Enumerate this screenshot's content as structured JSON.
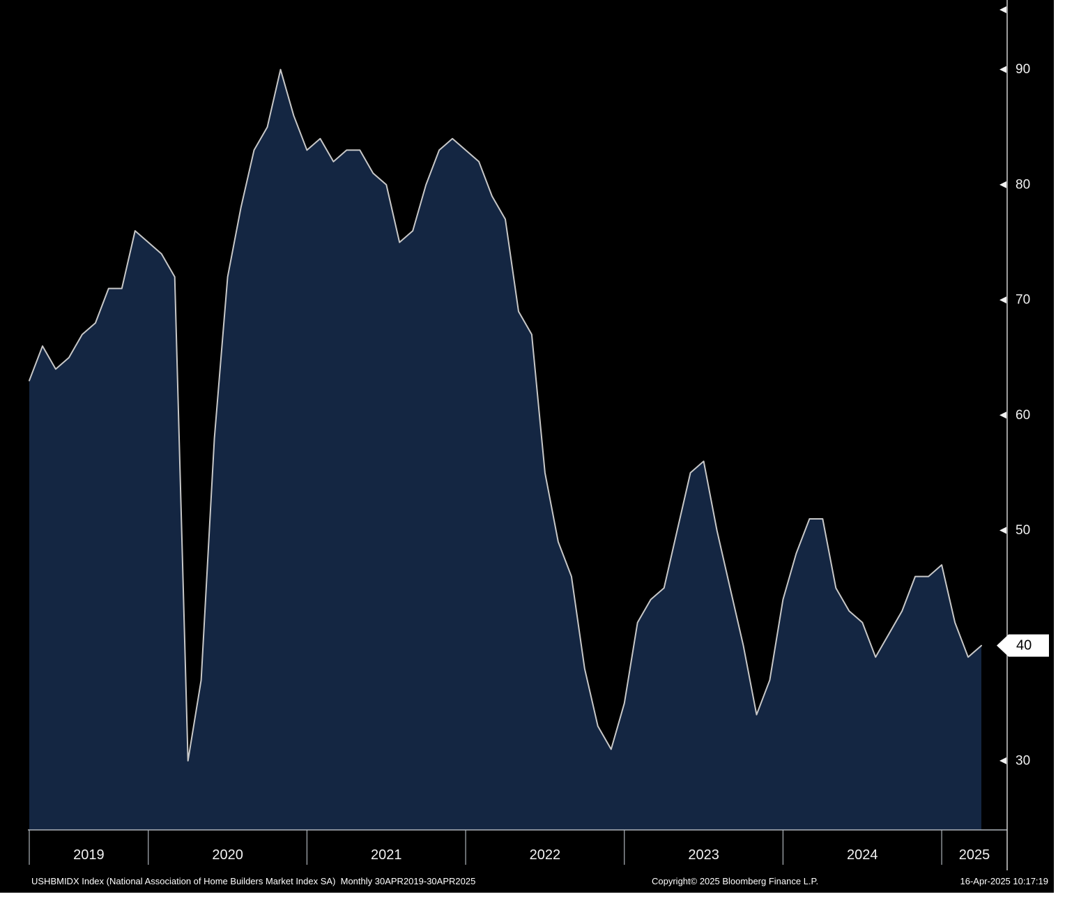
{
  "chart_data": {
    "type": "area",
    "title": "USHBMIDX Index (National Association of Home Builders Market Index SA)",
    "frequency": "Monthly",
    "period": "30APR2019-30APR2025",
    "xlabel": "",
    "ylabel": "",
    "ylim": [
      24,
      95.6
    ],
    "yticks": [
      30,
      40,
      50,
      60,
      70,
      80,
      90
    ],
    "last_value": 40,
    "x_year_labels": [
      "2019",
      "2020",
      "2021",
      "2022",
      "2023",
      "2024",
      "2025"
    ],
    "x": [
      "2019-04",
      "2019-05",
      "2019-06",
      "2019-07",
      "2019-08",
      "2019-09",
      "2019-10",
      "2019-11",
      "2019-12",
      "2020-01",
      "2020-02",
      "2020-03",
      "2020-04",
      "2020-05",
      "2020-06",
      "2020-07",
      "2020-08",
      "2020-09",
      "2020-10",
      "2020-11",
      "2020-12",
      "2021-01",
      "2021-02",
      "2021-03",
      "2021-04",
      "2021-05",
      "2021-06",
      "2021-07",
      "2021-08",
      "2021-09",
      "2021-10",
      "2021-11",
      "2021-12",
      "2022-01",
      "2022-02",
      "2022-03",
      "2022-04",
      "2022-05",
      "2022-06",
      "2022-07",
      "2022-08",
      "2022-09",
      "2022-10",
      "2022-11",
      "2022-12",
      "2023-01",
      "2023-02",
      "2023-03",
      "2023-04",
      "2023-05",
      "2023-06",
      "2023-07",
      "2023-08",
      "2023-09",
      "2023-10",
      "2023-11",
      "2023-12",
      "2024-01",
      "2024-02",
      "2024-03",
      "2024-04",
      "2024-05",
      "2024-06",
      "2024-07",
      "2024-08",
      "2024-09",
      "2024-10",
      "2024-11",
      "2024-12",
      "2025-01",
      "2025-02",
      "2025-03",
      "2025-04"
    ],
    "values": [
      63,
      66,
      64,
      65,
      67,
      68,
      71,
      71,
      76,
      75,
      74,
      72,
      30,
      37,
      58,
      72,
      78,
      83,
      85,
      90,
      86,
      83,
      84,
      82,
      83,
      83,
      81,
      80,
      75,
      76,
      80,
      83,
      84,
      83,
      82,
      79,
      77,
      69,
      67,
      55,
      49,
      46,
      38,
      33,
      31,
      35,
      42,
      44,
      45,
      50,
      55,
      56,
      50,
      45,
      40,
      34,
      37,
      44,
      48,
      51,
      51,
      45,
      43,
      42,
      39,
      41,
      43,
      46,
      46,
      47,
      42,
      39,
      40
    ],
    "legend": "none",
    "grid": "off",
    "colors": {
      "background": "#000000",
      "area_fill": "#142642",
      "line": "#c8c8c8",
      "axis": "#aeb4ba",
      "tick_text": "#f2f2f2",
      "label_box_bg": "#ffffff",
      "label_box_text": "#000000"
    }
  },
  "footer": {
    "left": "USHBMIDX Index (National Association of Home Builders Market Index SA)  Monthly 30APR2019-30APR2025",
    "center": "Copyright© 2025 Bloomberg Finance L.P.",
    "right": "16-Apr-2025 10:17:19"
  }
}
